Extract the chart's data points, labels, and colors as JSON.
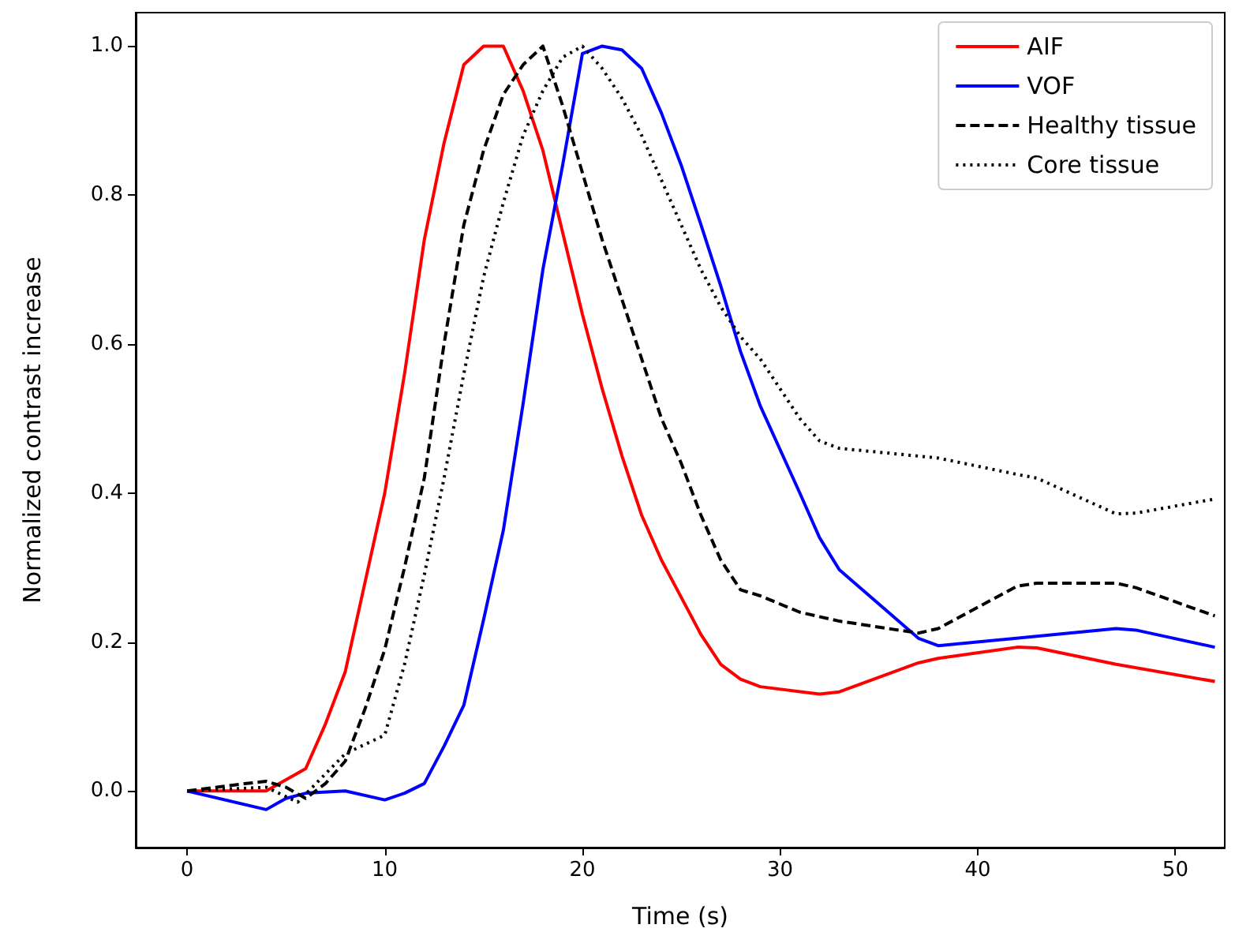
{
  "chart_data": {
    "type": "line",
    "xlabel": "Time (s)",
    "ylabel": "Normalized contrast increase",
    "xlim": [
      -2.6,
      52.5
    ],
    "ylim": [
      -0.076,
      1.045
    ],
    "xticks": [
      0,
      10,
      20,
      30,
      40,
      50
    ],
    "yticks": [
      {
        "value": 0,
        "label": "0.0"
      },
      {
        "value": 0.2,
        "label": "0.2"
      },
      {
        "value": 0.4,
        "label": "0.4"
      },
      {
        "value": 0.6,
        "label": "0.6"
      },
      {
        "value": 0.8,
        "label": "0.8"
      },
      {
        "value": 1,
        "label": "1.0"
      }
    ],
    "grid": false,
    "legend": "top right",
    "marker": "none",
    "series": [
      {
        "name": "AIF",
        "color": "#ff0000",
        "line_style": "solid",
        "x": [
          0,
          4,
          6,
          7,
          8,
          10,
          11,
          12,
          13,
          14,
          15,
          16,
          17,
          18,
          19,
          20,
          21,
          22,
          23,
          24,
          25,
          26,
          27,
          28,
          29,
          32,
          33,
          37,
          38,
          42,
          43,
          47,
          52
        ],
        "values": [
          0,
          0,
          0.03,
          0.09,
          0.16,
          0.4,
          0.56,
          0.74,
          0.87,
          0.975,
          1.0,
          1.0,
          0.94,
          0.86,
          0.75,
          0.64,
          0.54,
          0.45,
          0.37,
          0.31,
          0.26,
          0.21,
          0.17,
          0.15,
          0.14,
          0.13,
          0.133,
          0.172,
          0.178,
          0.193,
          0.192,
          0.17,
          0.147
        ]
      },
      {
        "name": "VOF",
        "color": "#0000ff",
        "line_style": "solid",
        "x": [
          0,
          4,
          5,
          6,
          8,
          10,
          11,
          12,
          13,
          14,
          15,
          16,
          17,
          18,
          19,
          20,
          21,
          22,
          23,
          24,
          25,
          26,
          27,
          28,
          29,
          31,
          32,
          33,
          37,
          38,
          47,
          48,
          52
        ],
        "values": [
          0,
          -0.025,
          -0.01,
          -0.003,
          0,
          -0.012,
          -0.003,
          0.01,
          0.06,
          0.115,
          0.23,
          0.35,
          0.52,
          0.7,
          0.84,
          0.99,
          1.0,
          0.995,
          0.97,
          0.91,
          0.84,
          0.76,
          0.678,
          0.59,
          0.517,
          0.4,
          0.34,
          0.297,
          0.205,
          0.195,
          0.218,
          0.216,
          0.193
        ]
      },
      {
        "name": "Healthy tissue",
        "color": "#000000",
        "line_style": "dashed",
        "x": [
          0,
          3,
          4,
          5,
          6,
          7,
          8,
          9,
          10,
          11,
          12,
          13,
          14,
          15,
          16,
          17,
          18,
          19,
          20,
          21,
          22,
          23,
          24,
          25,
          26,
          27,
          28,
          29,
          31,
          33,
          37,
          38,
          42,
          43,
          47,
          48,
          52
        ],
        "values": [
          0,
          0.01,
          0.013,
          0.005,
          -0.01,
          0.01,
          0.04,
          0.11,
          0.19,
          0.3,
          0.42,
          0.6,
          0.76,
          0.86,
          0.935,
          0.975,
          1.0,
          0.92,
          0.83,
          0.74,
          0.66,
          0.58,
          0.5,
          0.44,
          0.37,
          0.31,
          0.27,
          0.262,
          0.24,
          0.228,
          0.212,
          0.218,
          0.275,
          0.279,
          0.279,
          0.273,
          0.235
        ]
      },
      {
        "name": "Core tissue",
        "color": "#000000",
        "line_style": "dotted",
        "x": [
          0,
          4,
          5.6,
          8,
          10,
          11,
          12,
          13,
          14,
          15,
          16,
          17,
          18,
          19,
          20,
          21,
          22,
          23,
          24,
          25,
          26,
          27,
          28,
          29,
          30,
          31,
          32,
          33,
          38,
          42,
          43,
          47,
          48,
          52
        ],
        "values": [
          0,
          0.005,
          -0.015,
          0.05,
          0.075,
          0.17,
          0.29,
          0.42,
          0.56,
          0.69,
          0.79,
          0.88,
          0.94,
          0.985,
          1.0,
          0.97,
          0.93,
          0.88,
          0.82,
          0.76,
          0.7,
          0.65,
          0.61,
          0.58,
          0.54,
          0.5,
          0.47,
          0.46,
          0.447,
          0.425,
          0.42,
          0.372,
          0.373,
          0.392
        ]
      }
    ]
  }
}
